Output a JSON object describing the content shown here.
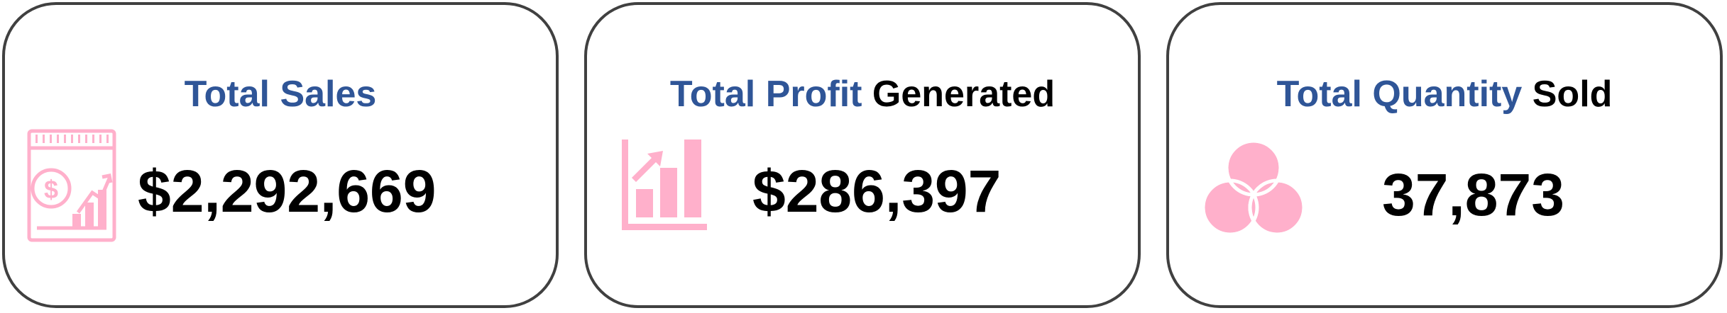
{
  "cards": [
    {
      "title_accent": "Total Sales",
      "title_rest": "",
      "value": "$2,292,669",
      "icon": "sales-report-icon"
    },
    {
      "title_accent": "Total Profit",
      "title_rest": " Generated",
      "value": "$286,397",
      "icon": "growth-bar-chart-icon"
    },
    {
      "title_accent": "Total Quantity",
      "title_rest": " Sold",
      "value": "37,873",
      "icon": "venn-diagram-icon"
    }
  ],
  "colors": {
    "title_accent": "#2f5597",
    "icon_pink": "#ffb0cb",
    "border": "#404040"
  }
}
